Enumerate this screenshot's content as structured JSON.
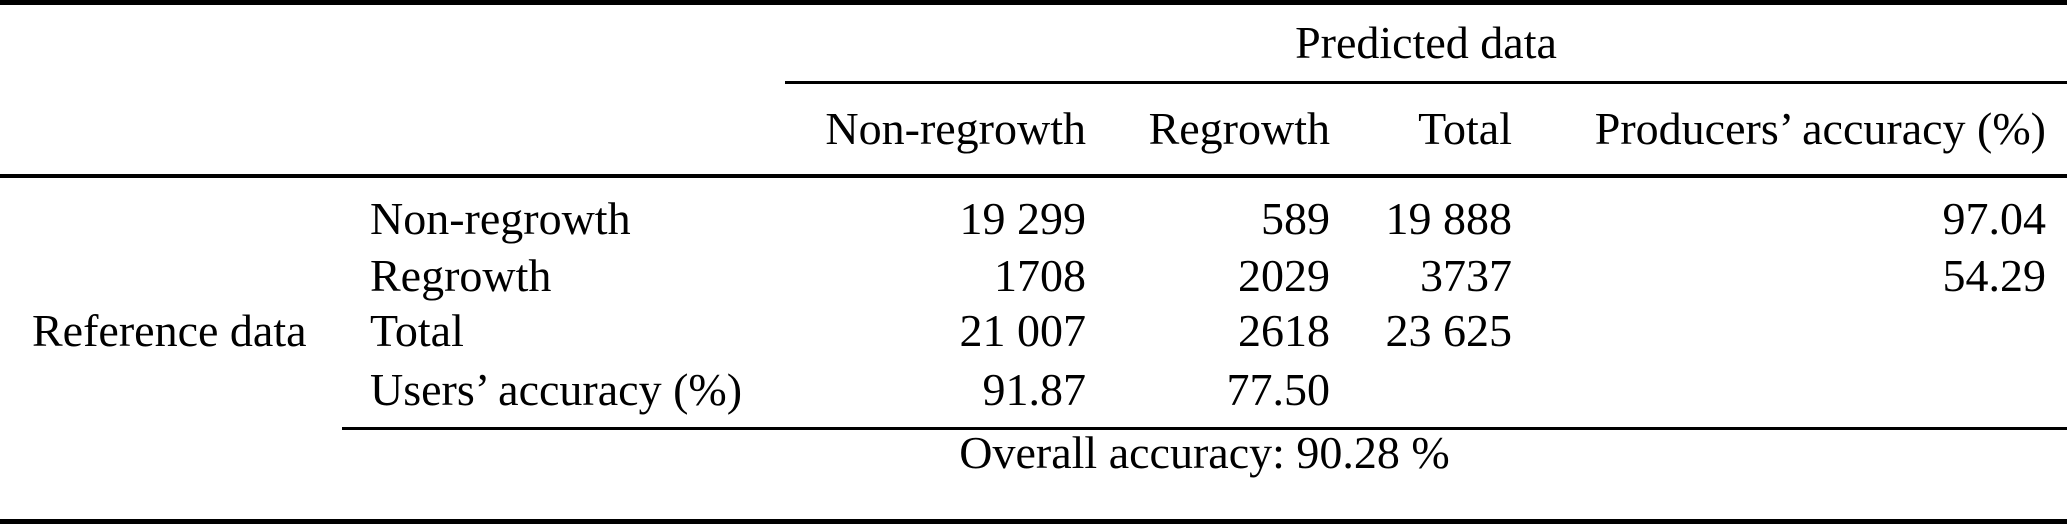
{
  "table": {
    "predicted_header": "Predicted data",
    "columns": [
      "Non-regrowth",
      "Regrowth",
      "Total",
      "Producers’ accuracy (%)"
    ],
    "reference_label": "Reference data",
    "rows": [
      {
        "label": "Non-regrowth",
        "non_regrowth": "19 299",
        "regrowth": "589",
        "total": "19 888",
        "producers_accuracy": "97.04"
      },
      {
        "label": "Regrowth",
        "non_regrowth": "1708",
        "regrowth": "2029",
        "total": "3737",
        "producers_accuracy": "54.29"
      },
      {
        "label": "Total",
        "non_regrowth": "21 007",
        "regrowth": "2618",
        "total": "23 625",
        "producers_accuracy": ""
      },
      {
        "label": "Users’ accuracy (%)",
        "non_regrowth": "91.87",
        "regrowth": "77.50",
        "total": "",
        "producers_accuracy": ""
      }
    ],
    "overall_accuracy": "Overall accuracy: 90.28 %"
  },
  "chart_data": {
    "type": "table",
    "col_axis": "Predicted data",
    "row_axis": "Reference data",
    "categories": [
      "Non-regrowth",
      "Regrowth"
    ],
    "matrix": [
      [
        19299,
        589
      ],
      [
        1708,
        2029
      ]
    ],
    "reference_row_totals": [
      19888,
      3737
    ],
    "predicted_col_totals": [
      21007,
      2618
    ],
    "grand_total": 23625,
    "producers_accuracy_pct": [
      97.04,
      54.29
    ],
    "users_accuracy_pct": [
      91.87,
      77.5
    ],
    "overall_accuracy_pct": 90.28
  }
}
